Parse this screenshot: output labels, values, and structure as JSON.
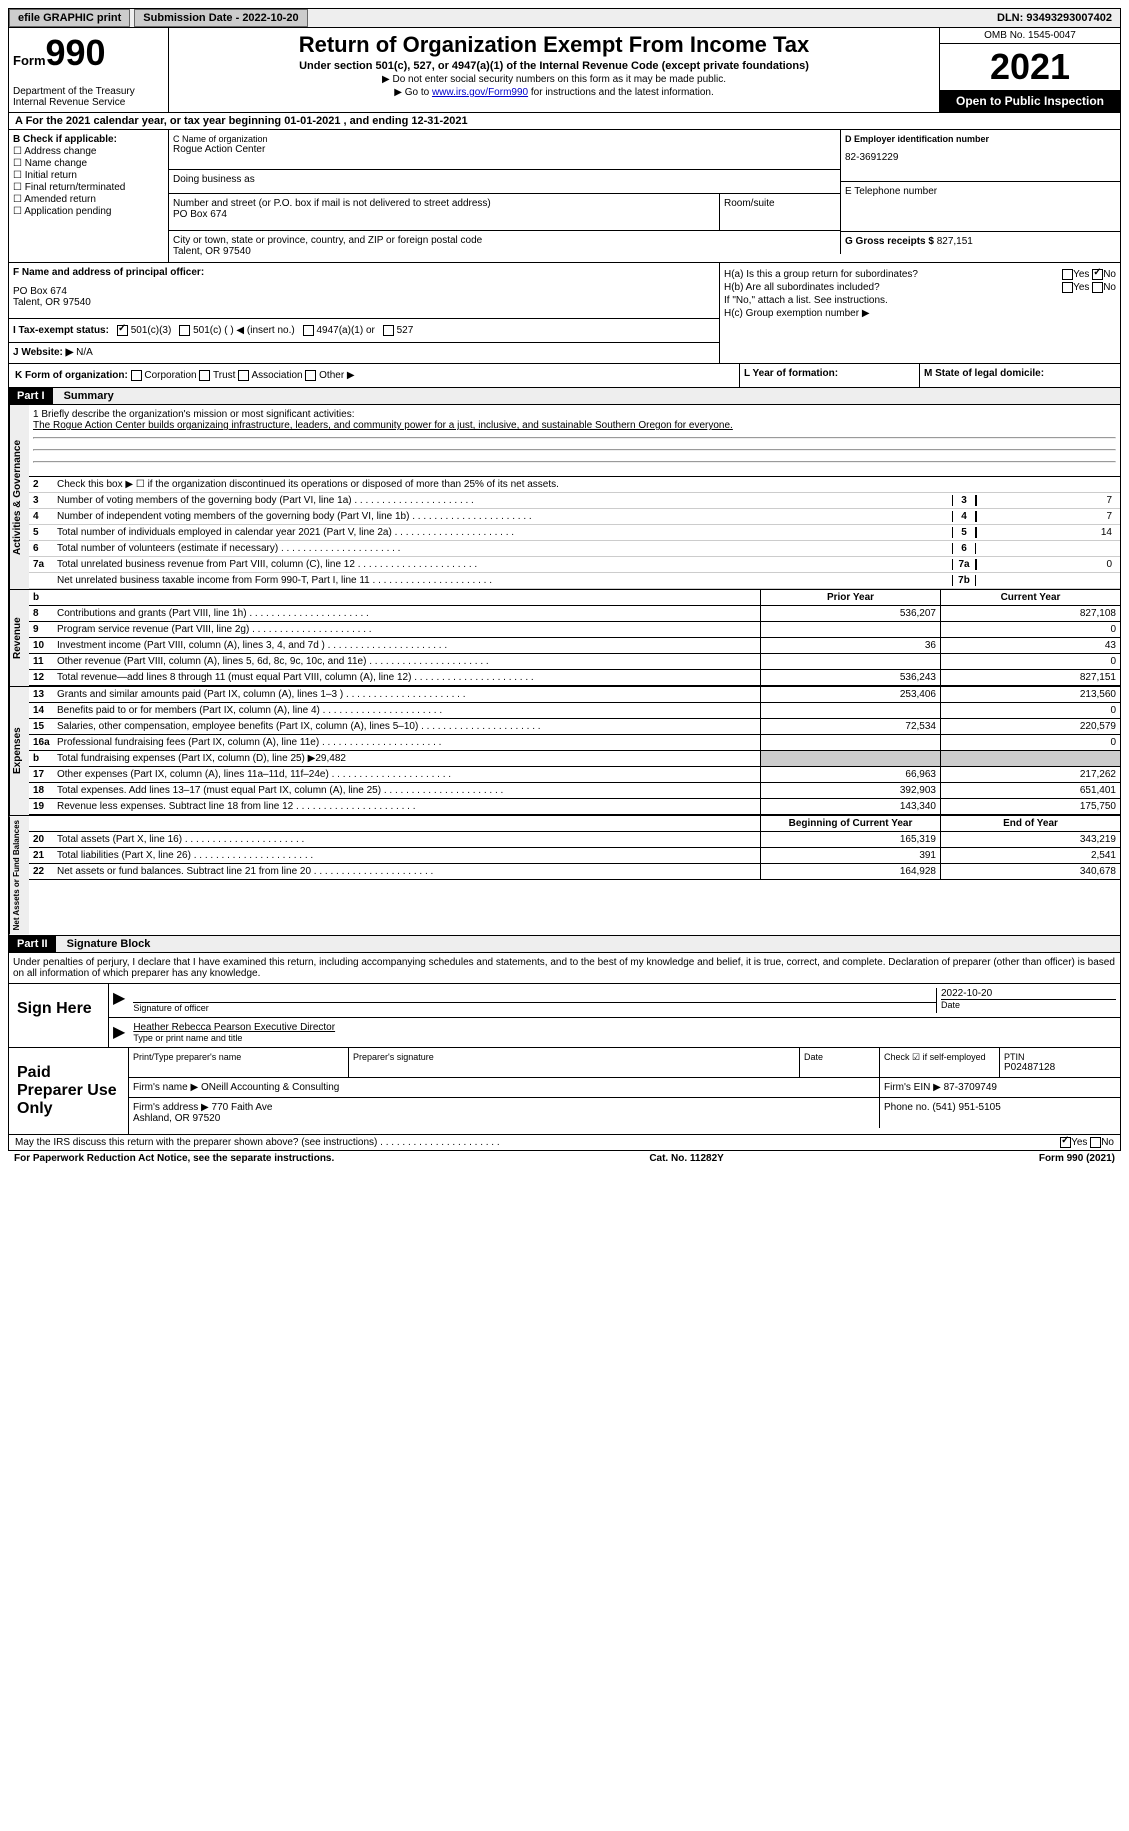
{
  "topbar": {
    "efile": "efile GRAPHIC print",
    "submission": "Submission Date - 2022-10-20",
    "dln": "DLN: 93493293007402"
  },
  "header": {
    "form_word": "Form",
    "form_num": "990",
    "dept": "Department of the Treasury\nInternal Revenue Service",
    "title": "Return of Organization Exempt From Income Tax",
    "subtitle": "Under section 501(c), 527, or 4947(a)(1) of the Internal Revenue Code (except private foundations)",
    "note1": "▶ Do not enter social security numbers on this form as it may be made public.",
    "note2_pre": "▶ Go to ",
    "note2_link": "www.irs.gov/Form990",
    "note2_post": " for instructions and the latest information.",
    "omb": "OMB No. 1545-0047",
    "year": "2021",
    "open": "Open to Public Inspection"
  },
  "period": "A  For the 2021 calendar year, or tax year beginning 01-01-2021     , and ending 12-31-2021",
  "sectionB": {
    "label": "B Check if applicable:",
    "checks": [
      "Address change",
      "Name change",
      "Initial return",
      "Final return/terminated",
      "Amended return",
      "Application pending"
    ],
    "c_label": "C Name of organization",
    "c_value": "Rogue Action Center",
    "dba_label": "Doing business as",
    "addr_label": "Number and street (or P.O. box if mail is not delivered to street address)",
    "addr_value": "PO Box 674",
    "room_label": "Room/suite",
    "city_label": "City or town, state or province, country, and ZIP or foreign postal code",
    "city_value": "Talent, OR  97540",
    "d_label": "D Employer identification number",
    "d_value": "82-3691229",
    "e_label": "E Telephone number",
    "g_label": "G Gross receipts $",
    "g_value": "827,151"
  },
  "f": {
    "label": "F Name and address of principal officer:",
    "addr1": "PO Box 674",
    "addr2": "Talent, OR  97540"
  },
  "h": {
    "a": "H(a)  Is this a group return for subordinates?",
    "a_yes": "Yes",
    "a_no": "No",
    "b": "H(b)  Are all subordinates included?",
    "b_note": "If \"No,\" attach a list. See instructions.",
    "c": "H(c)  Group exemption number ▶"
  },
  "i": {
    "label": "I  Tax-exempt status:",
    "opt1": "501(c)(3)",
    "opt2": "501(c) (   ) ◀ (insert no.)",
    "opt3": "4947(a)(1) or",
    "opt4": "527"
  },
  "j": {
    "label": "J  Website: ▶",
    "value": "N/A"
  },
  "k": {
    "label": "K Form of organization:",
    "opts": [
      "Corporation",
      "Trust",
      "Association",
      "Other ▶"
    ],
    "l": "L Year of formation:",
    "m": "M State of legal domicile:"
  },
  "part1": {
    "header": "Part I",
    "title": "Summary",
    "line1_label": "1  Briefly describe the organization's mission or most significant activities:",
    "mission": "The Rogue Action Center builds organizaing infrastructure, leaders, and community power for a just, inclusive, and sustainable Southern Oregon for everyone.",
    "line2": "Check this box ▶ ☐ if the organization discontinued its operations or disposed of more than 25% of its net assets.",
    "rows_gov": [
      {
        "n": "3",
        "t": "Number of voting members of the governing body (Part VI, line 1a)",
        "box": "3",
        "v": "7"
      },
      {
        "n": "4",
        "t": "Number of independent voting members of the governing body (Part VI, line 1b)",
        "box": "4",
        "v": "7"
      },
      {
        "n": "5",
        "t": "Total number of individuals employed in calendar year 2021 (Part V, line 2a)",
        "box": "5",
        "v": "14"
      },
      {
        "n": "6",
        "t": "Total number of volunteers (estimate if necessary)",
        "box": "6",
        "v": ""
      },
      {
        "n": "7a",
        "t": "Total unrelated business revenue from Part VIII, column (C), line 12",
        "box": "7a",
        "v": "0"
      },
      {
        "n": "",
        "t": "Net unrelated business taxable income from Form 990-T, Part I, line 11",
        "box": "7b",
        "v": ""
      }
    ],
    "prior_hdr": "Prior Year",
    "curr_hdr": "Current Year",
    "rows_rev": [
      {
        "n": "8",
        "t": "Contributions and grants (Part VIII, line 1h)",
        "p": "536,207",
        "c": "827,108"
      },
      {
        "n": "9",
        "t": "Program service revenue (Part VIII, line 2g)",
        "p": "",
        "c": "0"
      },
      {
        "n": "10",
        "t": "Investment income (Part VIII, column (A), lines 3, 4, and 7d )",
        "p": "36",
        "c": "43"
      },
      {
        "n": "11",
        "t": "Other revenue (Part VIII, column (A), lines 5, 6d, 8c, 9c, 10c, and 11e)",
        "p": "",
        "c": "0"
      },
      {
        "n": "12",
        "t": "Total revenue—add lines 8 through 11 (must equal Part VIII, column (A), line 12)",
        "p": "536,243",
        "c": "827,151"
      }
    ],
    "rows_exp": [
      {
        "n": "13",
        "t": "Grants and similar amounts paid (Part IX, column (A), lines 1–3 )",
        "p": "253,406",
        "c": "213,560"
      },
      {
        "n": "14",
        "t": "Benefits paid to or for members (Part IX, column (A), line 4)",
        "p": "",
        "c": "0"
      },
      {
        "n": "15",
        "t": "Salaries, other compensation, employee benefits (Part IX, column (A), lines 5–10)",
        "p": "72,534",
        "c": "220,579"
      },
      {
        "n": "16a",
        "t": "Professional fundraising fees (Part IX, column (A), line 11e)",
        "p": "",
        "c": "0"
      },
      {
        "n": "b",
        "t": "Total fundraising expenses (Part IX, column (D), line 25) ▶29,482",
        "shaded": true
      },
      {
        "n": "17",
        "t": "Other expenses (Part IX, column (A), lines 11a–11d, 11f–24e)",
        "p": "66,963",
        "c": "217,262"
      },
      {
        "n": "18",
        "t": "Total expenses. Add lines 13–17 (must equal Part IX, column (A), line 25)",
        "p": "392,903",
        "c": "651,401"
      },
      {
        "n": "19",
        "t": "Revenue less expenses. Subtract line 18 from line 12",
        "p": "143,340",
        "c": "175,750"
      }
    ],
    "net_hdr_p": "Beginning of Current Year",
    "net_hdr_c": "End of Year",
    "rows_net": [
      {
        "n": "20",
        "t": "Total assets (Part X, line 16)",
        "p": "165,319",
        "c": "343,219"
      },
      {
        "n": "21",
        "t": "Total liabilities (Part X, line 26)",
        "p": "391",
        "c": "2,541"
      },
      {
        "n": "22",
        "t": "Net assets or fund balances. Subtract line 21 from line 20",
        "p": "164,928",
        "c": "340,678"
      }
    ],
    "vert_gov": "Activities & Governance",
    "vert_rev": "Revenue",
    "vert_exp": "Expenses",
    "vert_net": "Net Assets or Fund Balances"
  },
  "part2": {
    "header": "Part II",
    "title": "Signature Block",
    "decl": "Under penalties of perjury, I declare that I have examined this return, including accompanying schedules and statements, and to the best of my knowledge and belief, it is true, correct, and complete. Declaration of preparer (other than officer) is based on all information of which preparer has any knowledge.",
    "sign_here": "Sign Here",
    "sig_of_officer": "Signature of officer",
    "sig_date": "2022-10-20",
    "date_label": "Date",
    "officer_name": "Heather Rebecca Pearson  Executive Director",
    "type_name": "Type or print name and title",
    "paid": "Paid Preparer Use Only",
    "prep_name_label": "Print/Type preparer's name",
    "prep_sig_label": "Preparer's signature",
    "prep_date_label": "Date",
    "check_self": "Check ☑ if self-employed",
    "ptin_label": "PTIN",
    "ptin": "P02487128",
    "firm_name_label": "Firm's name    ▶",
    "firm_name": "ONeill Accounting & Consulting",
    "firm_ein_label": "Firm's EIN ▶",
    "firm_ein": "87-3709749",
    "firm_addr_label": "Firm's address ▶",
    "firm_addr": "770 Faith Ave\nAshland, OR  97520",
    "phone_label": "Phone no.",
    "phone": "(541) 951-5105",
    "discuss": "May the IRS discuss this return with the preparer shown above? (see instructions)",
    "yes": "Yes",
    "no": "No",
    "paperwork": "For Paperwork Reduction Act Notice, see the separate instructions.",
    "cat": "Cat. No. 11282Y",
    "form_footer": "Form 990 (2021)"
  }
}
